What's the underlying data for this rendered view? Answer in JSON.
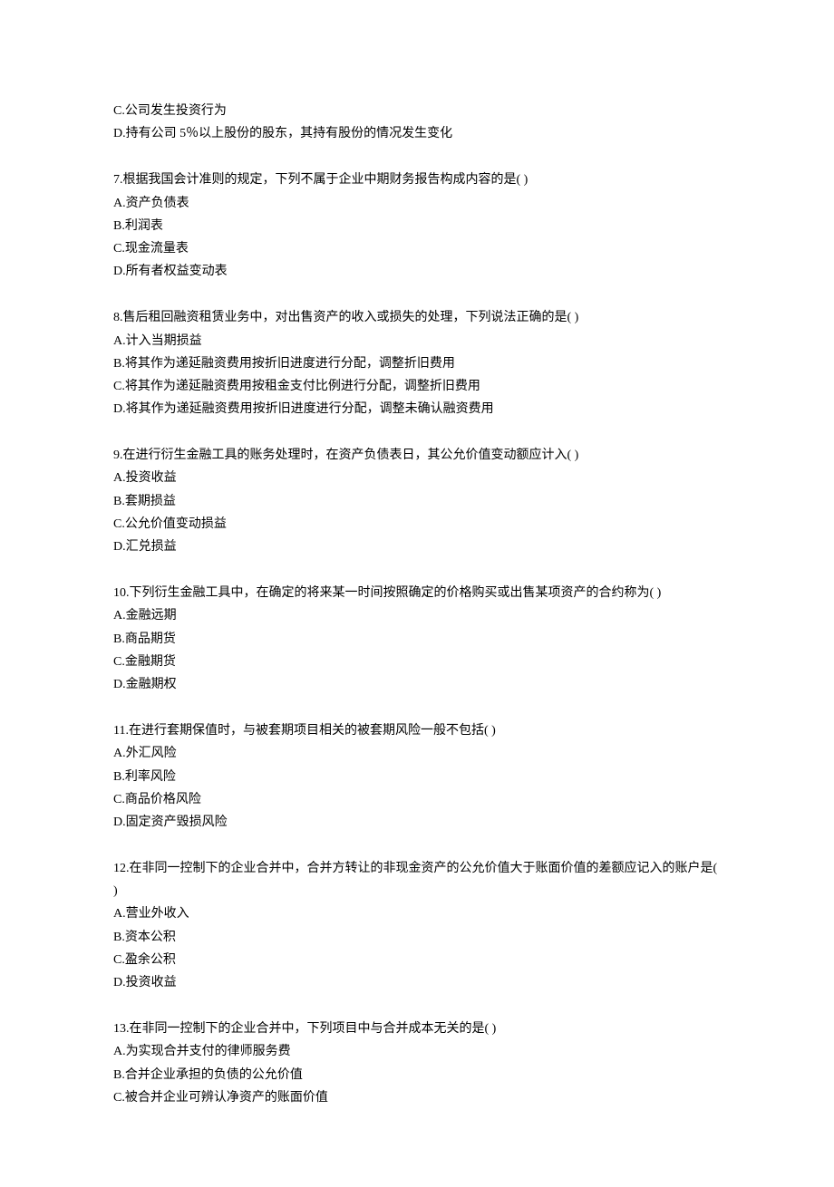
{
  "orphan_options": [
    "C.公司发生投资行为",
    "D.持有公司 5％以上股份的股东，其持有股份的情况发生变化"
  ],
  "questions": [
    {
      "stem": "7.根据我国会计准则的规定，下列不属于企业中期财务报告构成内容的是( )",
      "options": [
        "A.资产负债表",
        "B.利润表",
        "C.现金流量表",
        "D.所有者权益变动表"
      ]
    },
    {
      "stem": "8.售后租回融资租赁业务中，对出售资产的收入或损失的处理，下列说法正确的是( )",
      "options": [
        "A.计入当期损益",
        "B.将其作为递延融资费用按折旧进度进行分配，调整折旧费用",
        "C.将其作为递延融资费用按租金支付比例进行分配，调整折旧费用",
        "D.将其作为递延融资费用按折旧进度进行分配，调整未确认融资费用"
      ]
    },
    {
      "stem": "9.在进行衍生金融工具的账务处理时，在资产负债表日，其公允价值变动额应计入( )",
      "options": [
        "A.投资收益",
        "B.套期损益",
        "C.公允价值变动损益",
        "D.汇兑损益"
      ]
    },
    {
      "stem": "10.下列衍生金融工具中，在确定的将来某一时间按照确定的价格购买或出售某项资产的合约称为( )",
      "options": [
        "A.金融远期",
        "B.商品期货",
        "C.金融期货",
        "D.金融期权"
      ]
    },
    {
      "stem": "11.在进行套期保值时，与被套期项目相关的被套期风险一般不包括( )",
      "options": [
        "A.外汇风险",
        "B.利率风险",
        "C.商品价格风险",
        "D.固定资产毁损风险"
      ]
    },
    {
      "stem": "12.在非同一控制下的企业合并中，合并方转让的非现金资产的公允价值大于账面价值的差额应记入的账户是( )",
      "options": [
        "A.营业外收入",
        "B.资本公积",
        "C.盈余公积",
        "D.投资收益"
      ]
    },
    {
      "stem": "13.在非同一控制下的企业合并中，下列项目中与合并成本无关的是( )",
      "options": [
        "A.为实现合并支付的律师服务费",
        "B.合并企业承担的负债的公允价值",
        "C.被合并企业可辨认净资产的账面价值"
      ]
    }
  ]
}
